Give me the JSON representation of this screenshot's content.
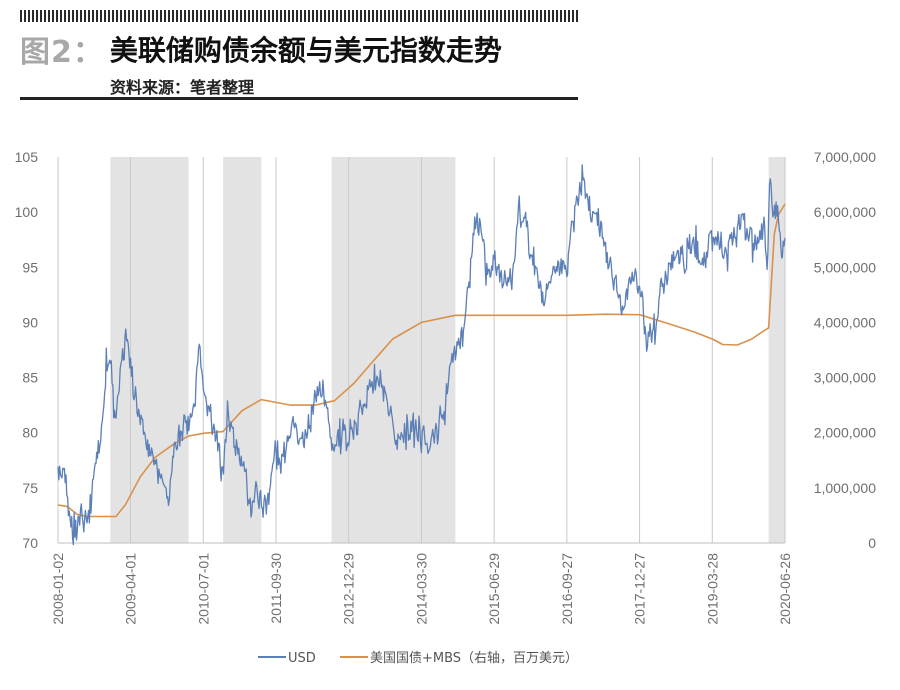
{
  "header": {
    "fig_label": "图2：",
    "title": "美联储购债余额与美元指数走势",
    "source": "资料来源：笔者整理"
  },
  "colors": {
    "usd": "#5b7fb6",
    "assets": "#d9914c",
    "shade": "#e3e3e3"
  },
  "chart_data": {
    "type": "line",
    "title": "美联储购债余额与美元指数走势",
    "x_ticks": [
      "2008-01-02",
      "2009-04-01",
      "2010-07-01",
      "2011-09-30",
      "2012-12-29",
      "2014-03-30",
      "2015-06-29",
      "2016-09-27",
      "2017-12-27",
      "2019-03-28",
      "2020-06-26"
    ],
    "x_range": [
      "2008-01-02",
      "2020-06-26"
    ],
    "y_left": {
      "range": [
        70,
        105
      ],
      "ticks": [
        "70",
        "75",
        "80",
        "85",
        "90",
        "95",
        "100",
        "105"
      ]
    },
    "y_right": {
      "range": [
        0,
        7000000
      ],
      "ticks": [
        "0",
        "1,000,000",
        "2,000,000",
        "3,000,000",
        "4,000,000",
        "5,000,000",
        "6,000,000",
        "7,000,000"
      ],
      "label": "右轴，百万美元"
    },
    "shaded_periods": [
      [
        "2008-11-25",
        "2010-03-31"
      ],
      [
        "2010-11-03",
        "2011-06-30"
      ],
      [
        "2012-09-13",
        "2014-10-29"
      ],
      [
        "2020-03-15",
        "2020-06-26"
      ]
    ],
    "series": [
      {
        "name": "USD",
        "axis": "left",
        "points": [
          [
            "2008-01-02",
            76.5
          ],
          [
            "2008-02-15",
            75.5
          ],
          [
            "2008-03-17",
            71.7
          ],
          [
            "2008-04-22",
            71.3
          ],
          [
            "2008-06-01",
            73.0
          ],
          [
            "2008-07-15",
            72.4
          ],
          [
            "2008-08-20",
            77.0
          ],
          [
            "2008-09-20",
            78.5
          ],
          [
            "2008-10-10",
            82.0
          ],
          [
            "2008-11-10",
            87.5
          ],
          [
            "2008-12-05",
            85.0
          ],
          [
            "2008-12-31",
            80.6
          ],
          [
            "2009-02-01",
            86.0
          ],
          [
            "2009-03-04",
            89.2
          ],
          [
            "2009-04-01",
            85.5
          ],
          [
            "2009-05-15",
            82.0
          ],
          [
            "2009-06-15",
            80.0
          ],
          [
            "2009-07-15",
            79.2
          ],
          [
            "2009-08-15",
            78.3
          ],
          [
            "2009-10-01",
            76.5
          ],
          [
            "2009-11-25",
            74.3
          ],
          [
            "2009-12-31",
            77.8
          ],
          [
            "2010-02-15",
            80.5
          ],
          [
            "2010-03-31",
            81.0
          ],
          [
            "2010-05-01",
            82.3
          ],
          [
            "2010-06-07",
            88.4
          ],
          [
            "2010-07-01",
            84.5
          ],
          [
            "2010-08-15",
            82.0
          ],
          [
            "2010-09-15",
            80.0
          ],
          [
            "2010-11-03",
            76.4
          ],
          [
            "2010-11-30",
            81.5
          ],
          [
            "2011-01-15",
            79.0
          ],
          [
            "2011-03-01",
            77.0
          ],
          [
            "2011-04-29",
            72.9
          ],
          [
            "2011-06-01",
            75.0
          ],
          [
            "2011-07-01",
            74.0
          ],
          [
            "2011-08-01",
            73.5
          ],
          [
            "2011-09-30",
            78.6
          ],
          [
            "2011-11-01",
            77.0
          ],
          [
            "2012-01-13",
            81.5
          ],
          [
            "2012-03-01",
            79.0
          ],
          [
            "2012-04-15",
            79.5
          ],
          [
            "2012-06-01",
            83.5
          ],
          [
            "2012-07-24",
            84.0
          ],
          [
            "2012-09-14",
            79.0
          ],
          [
            "2012-12-29",
            79.8
          ],
          [
            "2013-02-15",
            80.6
          ],
          [
            "2013-04-01",
            83.0
          ],
          [
            "2013-05-20",
            84.5
          ],
          [
            "2013-07-09",
            84.7
          ],
          [
            "2013-09-01",
            82.0
          ],
          [
            "2013-10-25",
            79.5
          ],
          [
            "2013-12-29",
            80.4
          ],
          [
            "2014-02-15",
            80.2
          ],
          [
            "2014-03-30",
            80.0
          ],
          [
            "2014-05-08",
            79.0
          ],
          [
            "2014-06-30",
            80.2
          ],
          [
            "2014-08-15",
            81.7
          ],
          [
            "2014-09-30",
            86.0
          ],
          [
            "2014-11-15",
            88.0
          ],
          [
            "2014-12-31",
            90.3
          ],
          [
            "2015-01-31",
            94.8
          ],
          [
            "2015-03-13",
            100.3
          ],
          [
            "2015-04-15",
            97.5
          ],
          [
            "2015-05-15",
            94.5
          ],
          [
            "2015-06-29",
            95.5
          ],
          [
            "2015-08-24",
            93.5
          ],
          [
            "2015-10-15",
            94.0
          ],
          [
            "2015-11-30",
            100.1
          ],
          [
            "2016-01-15",
            99.0
          ],
          [
            "2016-02-15",
            96.0
          ],
          [
            "2016-05-03",
            92.0
          ],
          [
            "2016-06-15",
            94.0
          ],
          [
            "2016-08-15",
            95.0
          ],
          [
            "2016-09-27",
            95.4
          ],
          [
            "2016-11-15",
            100.0
          ],
          [
            "2017-01-03",
            103.3
          ],
          [
            "2017-02-15",
            100.5
          ],
          [
            "2017-04-01",
            100.3
          ],
          [
            "2017-05-15",
            97.0
          ],
          [
            "2017-06-30",
            95.0
          ],
          [
            "2017-08-15",
            93.0
          ],
          [
            "2017-09-08",
            91.0
          ],
          [
            "2017-10-31",
            94.5
          ],
          [
            "2017-12-27",
            93.2
          ],
          [
            "2018-02-15",
            88.6
          ],
          [
            "2018-03-31",
            89.8
          ],
          [
            "2018-05-15",
            93.0
          ],
          [
            "2018-06-30",
            94.8
          ],
          [
            "2018-08-15",
            96.5
          ],
          [
            "2018-10-01",
            95.5
          ],
          [
            "2018-12-01",
            97.3
          ],
          [
            "2019-01-31",
            95.6
          ],
          [
            "2019-03-28",
            97.1
          ],
          [
            "2019-05-15",
            97.8
          ],
          [
            "2019-06-25",
            95.8
          ],
          [
            "2019-08-15",
            98.0
          ],
          [
            "2019-09-30",
            99.3
          ],
          [
            "2019-11-15",
            97.8
          ],
          [
            "2019-12-31",
            96.4
          ],
          [
            "2020-02-15",
            99.0
          ],
          [
            "2020-03-09",
            94.9
          ],
          [
            "2020-03-20",
            102.8
          ],
          [
            "2020-04-15",
            99.8
          ],
          [
            "2020-05-15",
            100.0
          ],
          [
            "2020-06-10",
            96.0
          ],
          [
            "2020-06-26",
            97.4
          ]
        ]
      },
      {
        "name": "美国国债+MBS",
        "axis": "right",
        "points": [
          [
            "2008-01-02",
            690000
          ],
          [
            "2008-03-01",
            660000
          ],
          [
            "2008-05-01",
            520000
          ],
          [
            "2008-07-01",
            480000
          ],
          [
            "2008-10-01",
            480000
          ],
          [
            "2008-12-31",
            480000
          ],
          [
            "2009-03-01",
            700000
          ],
          [
            "2009-06-01",
            1200000
          ],
          [
            "2009-09-01",
            1550000
          ],
          [
            "2009-12-31",
            1800000
          ],
          [
            "2010-03-31",
            1940000
          ],
          [
            "2010-07-01",
            1990000
          ],
          [
            "2010-11-01",
            2020000
          ],
          [
            "2011-03-01",
            2400000
          ],
          [
            "2011-06-30",
            2600000
          ],
          [
            "2011-12-31",
            2500000
          ],
          [
            "2012-06-01",
            2500000
          ],
          [
            "2012-10-01",
            2580000
          ],
          [
            "2013-02-01",
            2900000
          ],
          [
            "2013-06-01",
            3300000
          ],
          [
            "2013-10-01",
            3700000
          ],
          [
            "2014-03-30",
            4000000
          ],
          [
            "2014-10-29",
            4130000
          ],
          [
            "2015-06-29",
            4130000
          ],
          [
            "2016-09-27",
            4130000
          ],
          [
            "2017-06-01",
            4150000
          ],
          [
            "2017-12-27",
            4140000
          ],
          [
            "2018-06-01",
            4000000
          ],
          [
            "2018-12-01",
            3830000
          ],
          [
            "2019-03-28",
            3700000
          ],
          [
            "2019-06-01",
            3600000
          ],
          [
            "2019-09-01",
            3590000
          ],
          [
            "2019-12-01",
            3700000
          ],
          [
            "2020-02-15",
            3850000
          ],
          [
            "2020-03-15",
            3900000
          ],
          [
            "2020-04-01",
            4700000
          ],
          [
            "2020-04-20",
            5600000
          ],
          [
            "2020-05-15",
            5950000
          ],
          [
            "2020-06-26",
            6150000
          ]
        ]
      }
    ],
    "legend": [
      {
        "name": "USD",
        "label": "USD"
      },
      {
        "name": "美国国债+MBS",
        "label": "美国国债+MBS（右轴，百万美元）"
      }
    ],
    "legend_position": "bottom",
    "grid": "vertical-lines"
  }
}
